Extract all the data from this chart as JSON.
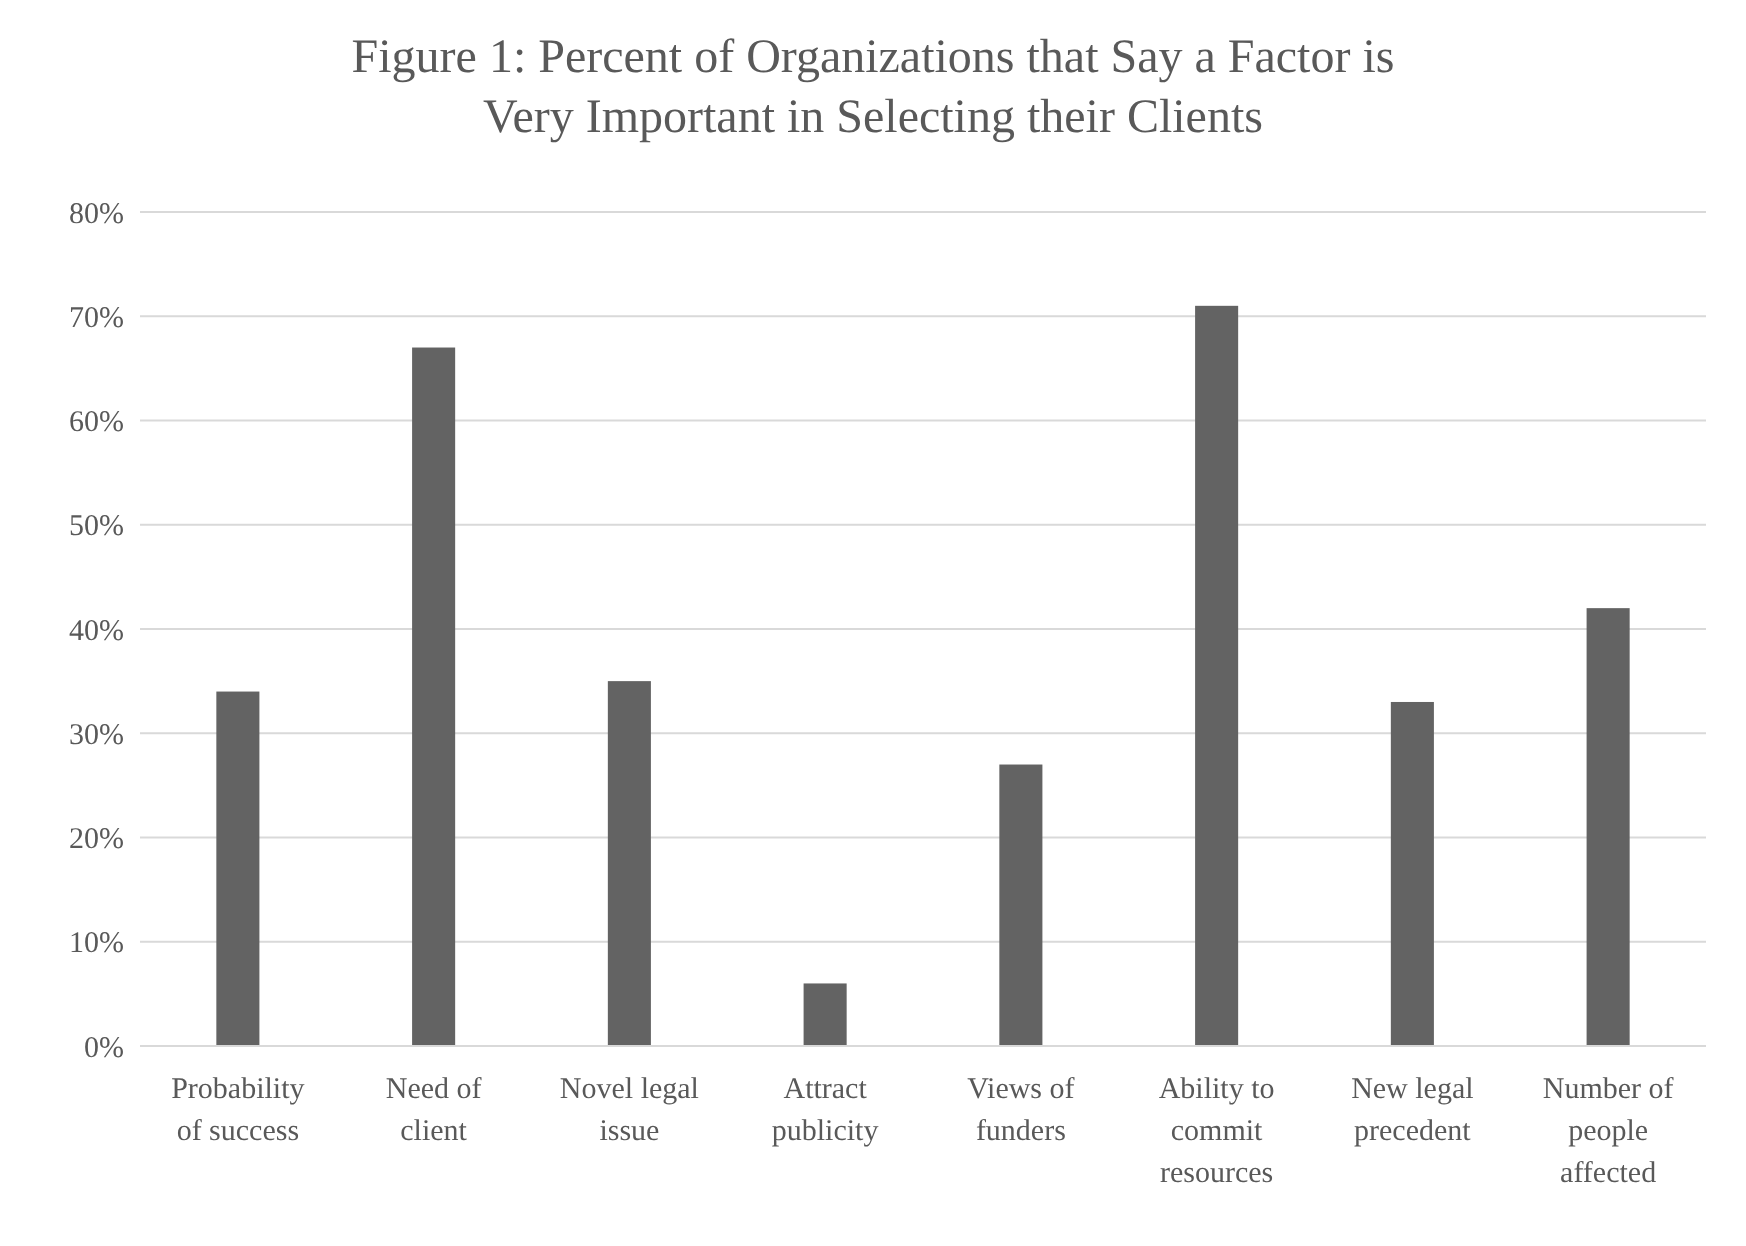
{
  "chart_data": {
    "type": "bar",
    "title": "Figure 1: Percent of Organizations that Say a Factor is\nVery Important in Selecting their Clients",
    "categories": [
      "Probability of success",
      "Need of client",
      "Novel legal issue",
      "Attract publicity",
      "Views of funders",
      "Ability to commit resources",
      "New legal precedent",
      "Number of people affected"
    ],
    "values": [
      0.34,
      0.67,
      0.35,
      0.06,
      0.27,
      0.71,
      0.33,
      0.42
    ],
    "color": "#636363",
    "ylim": [
      0,
      0.8
    ],
    "yticks": [
      {
        "value": 0,
        "label": "0%"
      },
      {
        "value": 0.1,
        "label": "10%"
      },
      {
        "value": 0.2,
        "label": "20%"
      },
      {
        "value": 0.3,
        "label": "30%"
      },
      {
        "value": 0.4,
        "label": "40%"
      },
      {
        "value": 0.5,
        "label": "50%"
      },
      {
        "value": 0.6,
        "label": "60%"
      },
      {
        "value": 0.7,
        "label": "70%"
      },
      {
        "value": 0.8,
        "label": "80%"
      }
    ],
    "grid": "y"
  }
}
